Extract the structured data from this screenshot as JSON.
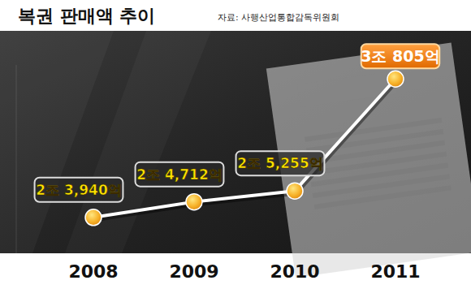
{
  "chart_data": {
    "type": "line",
    "title": "복권 판매액 추이",
    "source": "자료: 사행산업통합감독위원회",
    "categories": [
      "2008",
      "2009",
      "2010",
      "2011"
    ],
    "values": [
      23940,
      24712,
      25255,
      30805
    ],
    "value_labels": [
      "2조 3,940억",
      "2조 4,712억",
      "2조 5,255억",
      "3조 805억"
    ],
    "ylim": [
      22000,
      31500
    ],
    "data_labels": true,
    "tick_labels": "x",
    "color": "#ffffff",
    "marker": "circle"
  }
}
